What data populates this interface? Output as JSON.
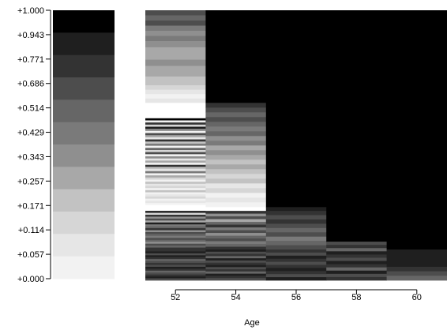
{
  "chart_data": {
    "type": "heatmap",
    "title": "",
    "xlabel": "Age",
    "ylabel": "",
    "x_ticks": [
      "52",
      "54",
      "56",
      "58",
      "60"
    ],
    "x_range": [
      51,
      61
    ],
    "legend": {
      "placement": "left",
      "tick_labels": [
        "+1.000",
        "+0.943",
        "+0.771",
        "+0.686",
        "+0.514",
        "+0.429",
        "+0.343",
        "+0.257",
        "+0.171",
        "+0.114",
        "+0.057",
        "+0.000"
      ],
      "colors": [
        "#000000",
        "#1f1f1f",
        "#333333",
        "#4d4d4d",
        "#666666",
        "#7a7a7a",
        "#8f8f8f",
        "#a8a8a8",
        "#c2c2c2",
        "#d6d6d6",
        "#e6e6e6",
        "#f2f2f2"
      ]
    },
    "columns": [
      {
        "x_range": [
          51,
          53
        ],
        "segments": [
          {
            "y": [
              0.886,
              1.0
            ],
            "shades": [
              "#4d4d4d",
              "#666666",
              "#4d4d4d",
              "#7a7a7a",
              "#8f8f8f",
              "#7a7a7a"
            ]
          },
          {
            "y": [
              0.771,
              0.886
            ],
            "shades": [
              "#8f8f8f",
              "#a8a8a8",
              "#a8a8a8",
              "#8f8f8f",
              "#a8a8a8"
            ]
          },
          {
            "y": [
              0.657,
              0.771
            ],
            "shades": [
              "#a8a8a8",
              "#c2c2c2",
              "#c2c2c2",
              "#d6d6d6",
              "#e6e6e6",
              "#f2f2f2",
              "#e6e6e6"
            ]
          },
          {
            "y": [
              0.6,
              0.657
            ],
            "shades": [
              "#ffffff"
            ]
          },
          {
            "y": [
              0.271,
              0.6
            ],
            "shades": [
              "#000000",
              "#f2f2f2",
              "#333333",
              "#d6d6d6",
              "#1f1f1f",
              "#8f8f8f",
              "#f2f2f2",
              "#4d4d4d",
              "#a8a8a8",
              "#e6e6e6",
              "#333333",
              "#c2c2c2",
              "#7a7a7a",
              "#f2f2f2",
              "#666666",
              "#d6d6d6",
              "#4d4d4d",
              "#f2f2f2",
              "#8f8f8f",
              "#e6e6e6",
              "#a8a8a8",
              "#f2f2f2",
              "#333333",
              "#c2c2c2",
              "#e6e6e6",
              "#7a7a7a",
              "#f2f2f2",
              "#a8a8a8",
              "#d6d6d6",
              "#f2f2f2",
              "#c2c2c2",
              "#e6e6e6",
              "#d6d6d6",
              "#f2f2f2",
              "#c2c2c2",
              "#f2f2f2",
              "#e6e6e6",
              "#d6d6d6",
              "#f2f2f2",
              "#e6e6e6",
              "#f2f2f2",
              "#ffffff"
            ]
          },
          {
            "y": [
              0.257,
              0.271
            ],
            "shades": [
              "#ffffff"
            ]
          },
          {
            "y": [
              0.114,
              0.257
            ],
            "shades": [
              "#1f1f1f",
              "#d6d6d6",
              "#333333",
              "#8f8f8f",
              "#4d4d4d",
              "#a8a8a8",
              "#1f1f1f",
              "#7a7a7a",
              "#666666",
              "#333333",
              "#8f8f8f",
              "#4d4d4d",
              "#666666",
              "#7a7a7a",
              "#4d4d4d",
              "#666666",
              "#8f8f8f",
              "#4d4d4d",
              "#666666",
              "#333333"
            ]
          },
          {
            "y": [
              0.0,
              0.114
            ],
            "shades": [
              "#333333",
              "#1f1f1f",
              "#4d4d4d",
              "#1f1f1f",
              "#333333",
              "#666666",
              "#4d4d4d",
              "#333333",
              "#4d4d4d",
              "#1f1f1f",
              "#333333",
              "#666666",
              "#4d4d4d",
              "#333333",
              "#1f1f1f",
              "#4d4d4d"
            ]
          }
        ]
      },
      {
        "x_range": [
          53,
          55
        ],
        "segments": [
          {
            "y": [
              0.657,
              1.0
            ],
            "shades": [
              "#000000"
            ]
          },
          {
            "y": [
              0.271,
              0.657
            ],
            "shades": [
              "#333333",
              "#4d4d4d",
              "#666666",
              "#4d4d4d",
              "#666666",
              "#7a7a7a",
              "#666666",
              "#8f8f8f",
              "#7a7a7a",
              "#a8a8a8",
              "#8f8f8f",
              "#a8a8a8",
              "#c2c2c2",
              "#a8a8a8",
              "#c2c2c2",
              "#d6d6d6",
              "#c2c2c2",
              "#e6e6e6",
              "#d6d6d6",
              "#f2f2f2",
              "#e6e6e6",
              "#f2f2f2"
            ]
          },
          {
            "y": [
              0.257,
              0.271
            ],
            "shades": [
              "#ffffff"
            ]
          },
          {
            "y": [
              0.114,
              0.257
            ],
            "shades": [
              "#333333",
              "#8f8f8f",
              "#4d4d4d",
              "#a8a8a8",
              "#666666",
              "#333333",
              "#7a7a7a",
              "#4d4d4d",
              "#8f8f8f",
              "#666666",
              "#4d4d4d",
              "#7a7a7a",
              "#666666",
              "#333333"
            ]
          },
          {
            "y": [
              0.0,
              0.114
            ],
            "shades": [
              "#1f1f1f",
              "#4d4d4d",
              "#333333",
              "#666666",
              "#1f1f1f",
              "#4d4d4d",
              "#333333",
              "#1f1f1f",
              "#4d4d4d",
              "#333333",
              "#666666",
              "#1f1f1f",
              "#333333",
              "#4d4d4d"
            ]
          }
        ]
      },
      {
        "x_range": [
          55,
          57
        ],
        "segments": [
          {
            "y": [
              0.271,
              1.0
            ],
            "shades": [
              "#000000"
            ]
          },
          {
            "y": [
              0.257,
              0.271
            ],
            "shades": [
              "#1f1f1f"
            ]
          },
          {
            "y": [
              0.114,
              0.257
            ],
            "shades": [
              "#333333",
              "#4d4d4d",
              "#333333",
              "#4d4d4d",
              "#666666",
              "#4d4d4d",
              "#7a7a7a",
              "#666666",
              "#4d4d4d"
            ]
          },
          {
            "y": [
              0.0,
              0.114
            ],
            "shades": [
              "#333333",
              "#4d4d4d",
              "#1f1f1f",
              "#333333",
              "#4d4d4d",
              "#333333",
              "#1f1f1f",
              "#333333",
              "#4d4d4d",
              "#1f1f1f"
            ]
          }
        ]
      },
      {
        "x_range": [
          57,
          59
        ],
        "segments": [
          {
            "y": [
              0.143,
              1.0
            ],
            "shades": [
              "#000000"
            ]
          },
          {
            "y": [
              0.0,
              0.143
            ],
            "shades": [
              "#4d4d4d",
              "#333333",
              "#666666",
              "#1f1f1f",
              "#333333",
              "#4d4d4d",
              "#1f1f1f",
              "#333333",
              "#666666",
              "#1f1f1f",
              "#4d4d4d",
              "#333333"
            ]
          }
        ]
      },
      {
        "x_range": [
          59,
          61
        ],
        "segments": [
          {
            "y": [
              0.114,
              1.0
            ],
            "shades": [
              "#000000"
            ]
          },
          {
            "y": [
              0.05,
              0.114
            ],
            "shades": [
              "#1f1f1f"
            ]
          },
          {
            "y": [
              0.0,
              0.05
            ],
            "shades": [
              "#333333",
              "#4d4d4d",
              "#666666"
            ]
          }
        ]
      }
    ]
  }
}
